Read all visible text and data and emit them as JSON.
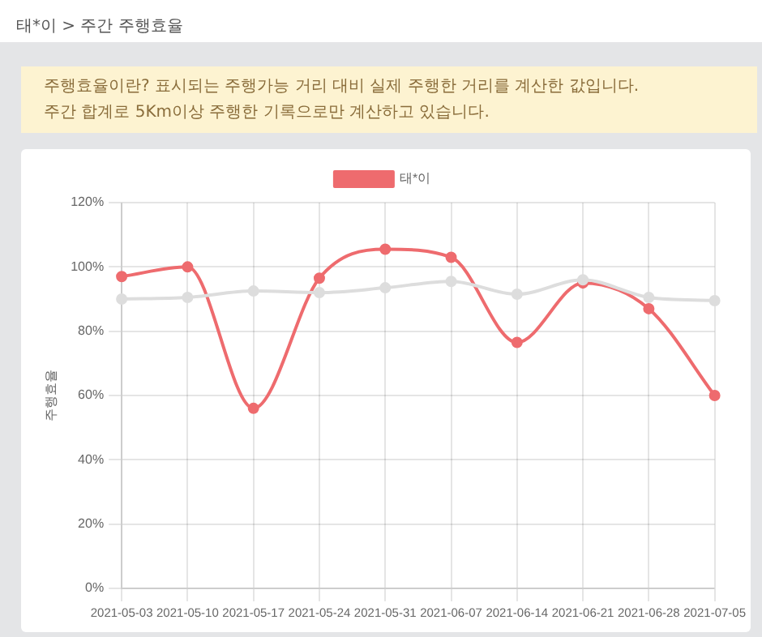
{
  "chart_data": {
    "type": "line",
    "title": "태*이 > 주간 주행효율",
    "annotations": [
      "주행효율이란? 표시되는 주행가능 거리 대비 실제 주행한 거리를 계산한 값입니다.",
      "주간 합계로 5Km이상 주행한 기록으로만 계산하고 있습니다."
    ],
    "ylabel": "주행효율",
    "categories": [
      "2021-05-03",
      "2021-05-10",
      "2021-05-17",
      "2021-05-24",
      "2021-05-31",
      "2021-06-07",
      "2021-06-14",
      "2021-06-21",
      "2021-06-28",
      "2021-07-05"
    ],
    "series": [
      {
        "name": "태*이",
        "color": "#ee6b6e",
        "values": [
          97,
          100,
          56,
          96.5,
          105.5,
          103,
          76.5,
          95,
          87,
          60
        ]
      },
      {
        "color": "#dddddd",
        "values": [
          90,
          90.5,
          92.5,
          92,
          93.5,
          95.5,
          91.5,
          96,
          90.5,
          89.5
        ]
      }
    ],
    "ylim": [
      0,
      120
    ],
    "yticks": [
      {
        "value": 0,
        "label": "0%"
      },
      {
        "value": 20,
        "label": "20%"
      },
      {
        "value": 40,
        "label": "40%"
      },
      {
        "value": 60,
        "label": "60%"
      },
      {
        "value": 80,
        "label": "80%"
      },
      {
        "value": 100,
        "label": "100%"
      },
      {
        "value": 120,
        "label": "120%"
      }
    ],
    "grid": true,
    "legend": "top",
    "marker": "circle"
  }
}
